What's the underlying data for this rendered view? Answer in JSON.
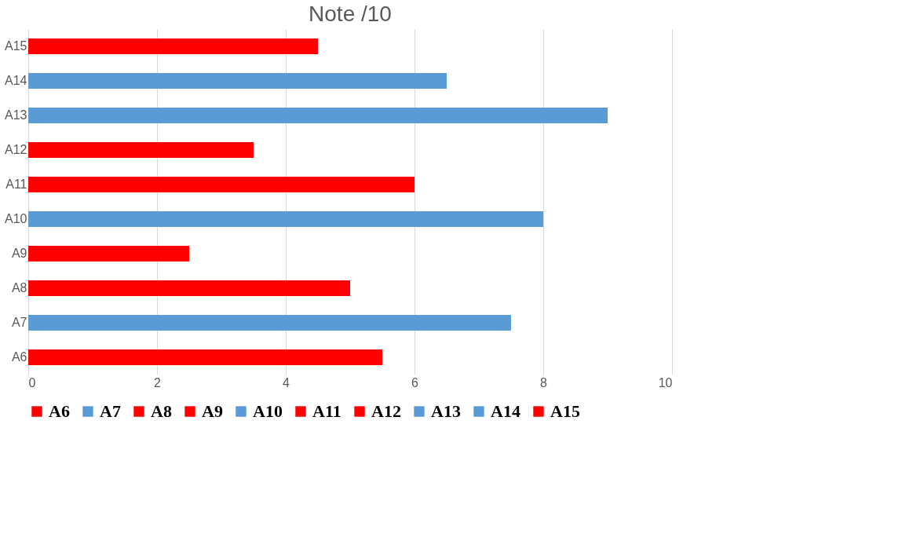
{
  "chart_data": {
    "type": "bar",
    "orientation": "horizontal",
    "stacked": true,
    "title": "Note /10",
    "categories": [
      "A15",
      "A14",
      "A13",
      "A12",
      "A11",
      "A10",
      "A9",
      "A8",
      "A7",
      "A6"
    ],
    "series": [
      {
        "name": "A6",
        "color": "#ff0000",
        "values": [
          null,
          null,
          null,
          null,
          null,
          null,
          null,
          null,
          null,
          5.5
        ]
      },
      {
        "name": "A7",
        "color": "#5b9bd5",
        "values": [
          null,
          null,
          null,
          null,
          null,
          null,
          null,
          null,
          7.5,
          null
        ]
      },
      {
        "name": "A8",
        "color": "#ff0000",
        "values": [
          null,
          null,
          null,
          null,
          null,
          null,
          null,
          5,
          null,
          null
        ]
      },
      {
        "name": "A9",
        "color": "#ff0000",
        "values": [
          null,
          null,
          null,
          null,
          null,
          null,
          2.5,
          null,
          null,
          null
        ]
      },
      {
        "name": "A10",
        "color": "#5b9bd5",
        "values": [
          null,
          null,
          null,
          null,
          null,
          8,
          null,
          null,
          null,
          null
        ]
      },
      {
        "name": "A11",
        "color": "#ff0000",
        "values": [
          null,
          null,
          null,
          null,
          6,
          null,
          null,
          null,
          null,
          null
        ]
      },
      {
        "name": "A12",
        "color": "#ff0000",
        "values": [
          null,
          null,
          null,
          3.5,
          null,
          null,
          null,
          null,
          null,
          null
        ]
      },
      {
        "name": "A13",
        "color": "#5b9bd5",
        "values": [
          null,
          null,
          9,
          null,
          null,
          null,
          null,
          null,
          null,
          null
        ]
      },
      {
        "name": "A14",
        "color": "#5b9bd5",
        "values": [
          null,
          6.5,
          null,
          null,
          null,
          null,
          null,
          null,
          null,
          null
        ]
      },
      {
        "name": "A15",
        "color": "#ff0000",
        "values": [
          4.5,
          null,
          null,
          null,
          null,
          null,
          null,
          null,
          null,
          null
        ]
      }
    ],
    "xlim": [
      0,
      10
    ],
    "xticks": [
      0,
      2,
      4,
      6,
      8,
      10
    ],
    "grid": "x",
    "legend": "bottom"
  }
}
